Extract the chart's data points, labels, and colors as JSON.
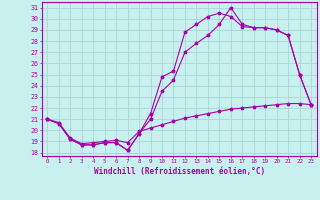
{
  "xlabel": "Windchill (Refroidissement éolien,°C)",
  "bg_color": "#c8f0ee",
  "grid_color": "#a8d8d8",
  "line_color": "#aa00aa",
  "xlim": [
    -0.5,
    23.5
  ],
  "ylim": [
    17.7,
    31.5
  ],
  "xticks": [
    0,
    1,
    2,
    3,
    4,
    5,
    6,
    7,
    8,
    9,
    10,
    11,
    12,
    13,
    14,
    15,
    16,
    17,
    18,
    19,
    20,
    21,
    22,
    23
  ],
  "yticks": [
    18,
    19,
    20,
    21,
    22,
    23,
    24,
    25,
    26,
    27,
    28,
    29,
    30,
    31
  ],
  "line1_x": [
    0,
    1,
    2,
    3,
    4,
    5,
    6,
    7,
    8,
    9,
    10,
    11,
    12,
    13,
    14,
    15,
    16,
    17,
    18,
    19,
    20,
    21,
    22,
    23
  ],
  "line1_y": [
    21.0,
    20.6,
    19.2,
    18.7,
    18.7,
    18.9,
    18.9,
    18.2,
    19.7,
    21.5,
    24.8,
    25.3,
    28.8,
    29.5,
    30.2,
    30.5,
    30.2,
    29.3,
    29.2,
    29.2,
    29.0,
    28.5,
    25.0,
    22.3
  ],
  "line2_x": [
    0,
    1,
    2,
    3,
    4,
    5,
    6,
    7,
    8,
    9,
    10,
    11,
    12,
    13,
    14,
    15,
    16,
    17,
    18,
    19,
    20,
    21,
    22,
    23
  ],
  "line2_y": [
    21.0,
    20.6,
    19.2,
    18.7,
    18.7,
    18.9,
    18.9,
    18.2,
    19.7,
    21.0,
    23.5,
    24.5,
    27.0,
    27.8,
    28.5,
    29.5,
    31.0,
    29.5,
    29.2,
    29.2,
    29.0,
    28.5,
    25.0,
    22.3
  ],
  "line3_x": [
    0,
    1,
    2,
    3,
    4,
    5,
    6,
    7,
    8,
    9,
    10,
    11,
    12,
    13,
    14,
    15,
    16,
    17,
    18,
    19,
    20,
    21,
    22,
    23
  ],
  "line3_y": [
    21.0,
    20.7,
    19.3,
    18.8,
    18.9,
    19.0,
    19.1,
    18.9,
    19.9,
    20.2,
    20.5,
    20.8,
    21.1,
    21.3,
    21.5,
    21.7,
    21.9,
    22.0,
    22.1,
    22.2,
    22.3,
    22.4,
    22.4,
    22.3
  ]
}
